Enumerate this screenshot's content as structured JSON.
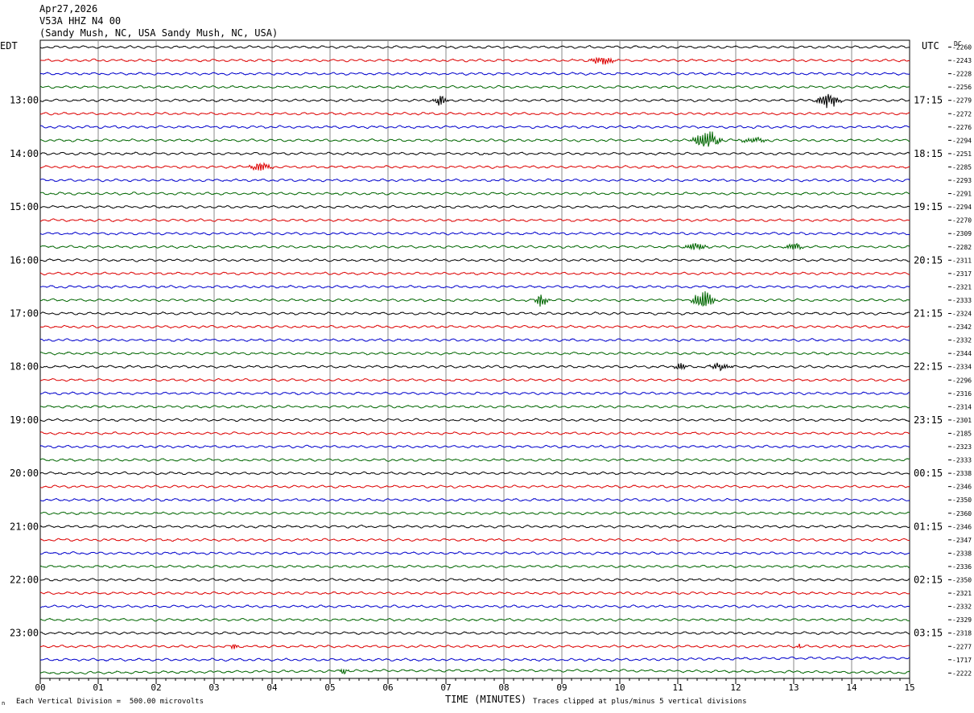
{
  "header": {
    "date": "Apr27,2026",
    "station": "V53A HHZ N4 00",
    "location": "(Sandy Mush, NC, USA Sandy Mush, NC, USA)"
  },
  "left_tz": "EDT",
  "right_tz": "UTC",
  "dc_label": "DC",
  "footer": {
    "scale_note": "Each Vertical Division =  500.00 microvolts",
    "clip_note": "Traces clipped at plus/minus 5 vertical divisions",
    "xlabel": "TIME (MINUTES)",
    "corner_mark": "n"
  },
  "chart_data": {
    "type": "line",
    "subtype": "helicorder",
    "x_ticks": [
      "00",
      "01",
      "02",
      "03",
      "04",
      "05",
      "06",
      "07",
      "08",
      "09",
      "10",
      "11",
      "12",
      "13",
      "14",
      "15"
    ],
    "x_range": [
      0,
      15
    ],
    "trace_colors": [
      "#000000",
      "#dd0000",
      "#0000cc",
      "#006600"
    ],
    "left_hour_labels": [
      {
        "row": 4,
        "label": "13:00"
      },
      {
        "row": 8,
        "label": "14:00"
      },
      {
        "row": 12,
        "label": "15:00"
      },
      {
        "row": 16,
        "label": "16:00"
      },
      {
        "row": 20,
        "label": "17:00"
      },
      {
        "row": 24,
        "label": "18:00"
      },
      {
        "row": 28,
        "label": "19:00"
      },
      {
        "row": 32,
        "label": "20:00"
      },
      {
        "row": 36,
        "label": "21:00"
      },
      {
        "row": 40,
        "label": "22:00"
      },
      {
        "row": 44,
        "label": "23:00"
      }
    ],
    "right_hour_labels": [
      {
        "row": 4,
        "label": "17:15"
      },
      {
        "row": 8,
        "label": "18:15"
      },
      {
        "row": 12,
        "label": "19:15"
      },
      {
        "row": 16,
        "label": "20:15"
      },
      {
        "row": 20,
        "label": "21:15"
      },
      {
        "row": 24,
        "label": "22:15"
      },
      {
        "row": 28,
        "label": "23:15"
      },
      {
        "row": 32,
        "label": "00:15"
      },
      {
        "row": 36,
        "label": "01:15"
      },
      {
        "row": 40,
        "label": "02:15"
      },
      {
        "row": 44,
        "label": "03:15"
      }
    ],
    "dc_offsets": [
      "-2260",
      "-2243",
      "-2228",
      "-2256",
      "-2279",
      "-2272",
      "-2276",
      "-2294",
      "-2251",
      "-2285",
      "-2293",
      "-2291",
      "-2294",
      "-2270",
      "-2309",
      "-2282",
      "-2311",
      "-2317",
      "-2321",
      "-2333",
      "-2324",
      "-2342",
      "-2332",
      "-2344",
      "-2334",
      "-2296",
      "-2316",
      "-2314",
      "-2301",
      "-2185",
      "-2323",
      "-2333",
      "-2338",
      "-2346",
      "-2350",
      "-2360",
      "-2346",
      "-2347",
      "-2338",
      "-2336",
      "-2350",
      "-2321",
      "-2332",
      "-2329",
      "-2318",
      "-2277",
      "-1717",
      "-2222"
    ],
    "events": [
      {
        "row": 1,
        "minute": 9.7,
        "amp": 4,
        "width": 0.3
      },
      {
        "row": 4,
        "minute": 6.9,
        "amp": 6,
        "width": 0.15
      },
      {
        "row": 4,
        "minute": 13.6,
        "amp": 9,
        "width": 0.25
      },
      {
        "row": 7,
        "minute": 11.5,
        "amp": 10,
        "width": 0.3
      },
      {
        "row": 7,
        "minute": 12.3,
        "amp": 3,
        "width": 0.3
      },
      {
        "row": 9,
        "minute": 3.8,
        "amp": 5,
        "width": 0.25
      },
      {
        "row": 15,
        "minute": 11.3,
        "amp": 5,
        "width": 0.25
      },
      {
        "row": 15,
        "minute": 13.0,
        "amp": 4,
        "width": 0.2
      },
      {
        "row": 19,
        "minute": 8.65,
        "amp": 8,
        "width": 0.15
      },
      {
        "row": 19,
        "minute": 11.45,
        "amp": 10,
        "width": 0.25
      },
      {
        "row": 24,
        "minute": 11.05,
        "amp": 4,
        "width": 0.15
      },
      {
        "row": 24,
        "minute": 11.75,
        "amp": 4,
        "width": 0.25
      },
      {
        "row": 45,
        "minute": 3.35,
        "amp": 4,
        "width": 0.08
      },
      {
        "row": 45,
        "minute": 13.1,
        "amp": 4,
        "width": 0.05
      },
      {
        "row": 47,
        "minute": 5.25,
        "amp": 4,
        "width": 0.1
      }
    ]
  }
}
